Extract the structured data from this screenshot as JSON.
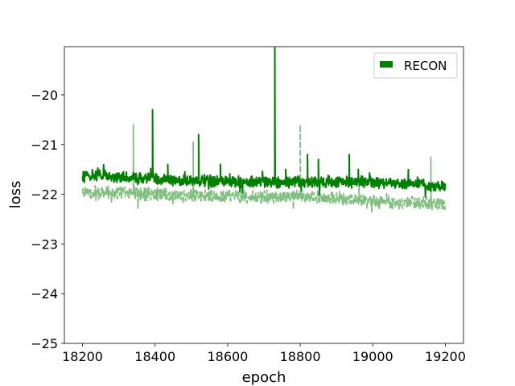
{
  "chart_data": {
    "type": "line",
    "title": "",
    "xlabel": "epoch",
    "ylabel": "loss",
    "xlim": [
      18150,
      19250
    ],
    "ylim": [
      -25,
      -19.03
    ],
    "xticks": [
      18200,
      18400,
      18600,
      18800,
      19000,
      19200
    ],
    "yticks": [
      -25,
      -24,
      -23,
      -22,
      -21,
      -20
    ],
    "xtick_labels": [
      "18200",
      "18400",
      "18600",
      "18800",
      "19000",
      "19200"
    ],
    "ytick_labels": [
      "−25",
      "−24",
      "−23",
      "−22",
      "−21",
      "−20"
    ],
    "grid": false,
    "legend": {
      "location": "upper right",
      "entries": [
        "RECON"
      ]
    },
    "series": [
      {
        "name": "RECON",
        "style": "solid",
        "color": "#008000",
        "x_start": 18200,
        "x_end": 19200,
        "base": [
          [
            18200,
            -21.6
          ],
          [
            18400,
            -21.7
          ],
          [
            18600,
            -21.75
          ],
          [
            18800,
            -21.75
          ],
          [
            19000,
            -21.75
          ],
          [
            19200,
            -21.85
          ]
        ],
        "noise": 0.09,
        "spikes": [
          [
            18393,
            -20.3
          ],
          [
            18435,
            -21.4
          ],
          [
            18520,
            -20.8
          ],
          [
            18580,
            -21.4
          ],
          [
            18730,
            -19.05
          ],
          [
            18760,
            -21.5
          ],
          [
            18820,
            -21.2
          ],
          [
            18850,
            -21.3
          ],
          [
            18935,
            -21.2
          ],
          [
            18960,
            -21.5
          ]
        ]
      },
      {
        "style": "dashed",
        "color": "#7fbf7f",
        "x_start": 18200,
        "x_end": 19200,
        "base": [
          [
            18200,
            -21.95
          ],
          [
            18400,
            -22.0
          ],
          [
            18600,
            -22.05
          ],
          [
            18800,
            -22.05
          ],
          [
            19000,
            -22.15
          ],
          [
            19200,
            -22.2
          ]
        ],
        "noise": 0.1,
        "spikes": [
          [
            18340,
            -20.6
          ],
          [
            18505,
            -20.95
          ],
          [
            18800,
            -20.6
          ],
          [
            19160,
            -21.25
          ]
        ]
      }
    ]
  }
}
